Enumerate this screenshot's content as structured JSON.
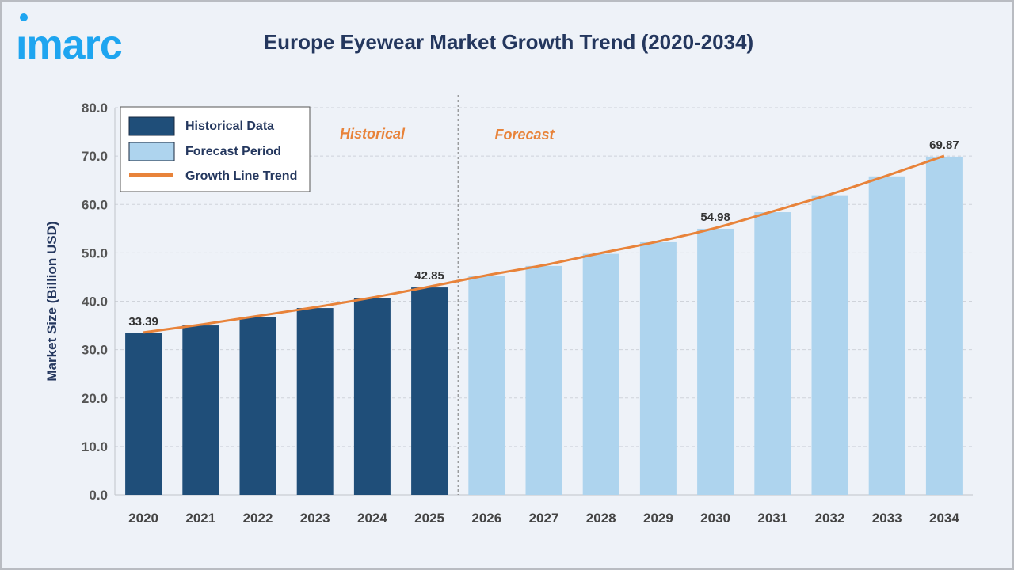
{
  "brand": {
    "logo_text": "imarc",
    "color": "#1ea5f0"
  },
  "chart_data": {
    "type": "bar",
    "title": "Europe Eyewear Market Growth Trend (2020-2034)",
    "ylabel": "Market Size (Billion USD)",
    "xlabel": "",
    "ylim": [
      0,
      80
    ],
    "yticks": [
      "0.0",
      "10.0",
      "20.0",
      "30.0",
      "40.0",
      "50.0",
      "60.0",
      "70.0",
      "80.0"
    ],
    "grid": true,
    "categories": [
      "2020",
      "2021",
      "2022",
      "2023",
      "2024",
      "2025",
      "2026",
      "2027",
      "2028",
      "2029",
      "2030",
      "2031",
      "2032",
      "2033",
      "2034"
    ],
    "series": [
      {
        "name": "Historical Data",
        "color": "#1f4e79",
        "values": [
          33.39,
          35.0,
          36.8,
          38.6,
          40.6,
          42.85,
          null,
          null,
          null,
          null,
          null,
          null,
          null,
          null,
          null
        ]
      },
      {
        "name": "Forecast Period",
        "color": "#aed4ee",
        "values": [
          null,
          null,
          null,
          null,
          null,
          null,
          45.2,
          47.3,
          49.8,
          52.2,
          54.98,
          58.4,
          61.9,
          65.8,
          69.87
        ]
      },
      {
        "name": "Growth Line Trend",
        "type": "line",
        "color": "#e8833a",
        "values": [
          33.39,
          35.0,
          36.8,
          38.6,
          40.6,
          42.85,
          45.2,
          47.3,
          49.8,
          52.2,
          54.98,
          58.4,
          61.9,
          65.8,
          69.87
        ]
      }
    ],
    "data_labels": [
      {
        "category": "2020",
        "text": "33.39"
      },
      {
        "category": "2025",
        "text": "42.85"
      },
      {
        "category": "2030",
        "text": "54.98"
      },
      {
        "category": "2034",
        "text": "69.87"
      }
    ],
    "annotations": {
      "historical": "Historical",
      "forecast": "Forecast"
    },
    "legend_position": "top-left"
  }
}
